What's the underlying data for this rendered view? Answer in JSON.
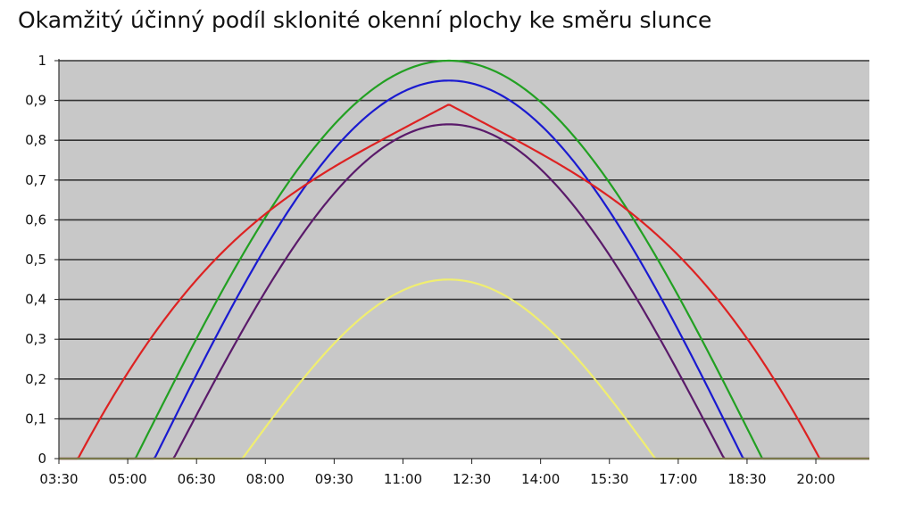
{
  "chart_data": {
    "type": "line",
    "title": "Okamžitý účinný podíl sklonité okenní plochy ke směru slunce",
    "xlabel": "",
    "ylabel": "",
    "x_ticks": [
      "03:30",
      "05:00",
      "06:30",
      "08:00",
      "09:30",
      "11:00",
      "12:30",
      "14:00",
      "15:30",
      "17:00",
      "18:30",
      "20:00"
    ],
    "y_ticks": [
      "0",
      "0,1",
      "0,2",
      "0,3",
      "0,4",
      "0,5",
      "0,6",
      "0,7",
      "0,8",
      "0,9",
      "1"
    ],
    "xlim": [
      "03:30",
      "21:10"
    ],
    "ylim": [
      0,
      1
    ],
    "grid": true,
    "background": "#c8c8c8",
    "gridline_color": "#333333",
    "series": [
      {
        "color": "#22a022",
        "start": "05:10",
        "peak_time": "12:00",
        "peak": 1.0,
        "end": "18:50",
        "shape": "sine"
      },
      {
        "color": "#1a1ad0",
        "start": "05:35",
        "peak_time": "12:00",
        "peak": 0.95,
        "end": "18:25",
        "shape": "sine"
      },
      {
        "color": "#dd2222",
        "start": "03:55",
        "peak_time": "12:00",
        "peak": 0.89,
        "end": "20:05",
        "shape": "sine_linear_flanks"
      },
      {
        "color": "#5a1a6a",
        "start": "06:00",
        "peak_time": "12:00",
        "peak": 0.84,
        "end": "18:00",
        "shape": "sine"
      },
      {
        "color": "#f0ee70",
        "start": "07:30",
        "peak_time": "12:00",
        "peak": 0.45,
        "end": "16:30",
        "shape": "sine"
      }
    ]
  }
}
